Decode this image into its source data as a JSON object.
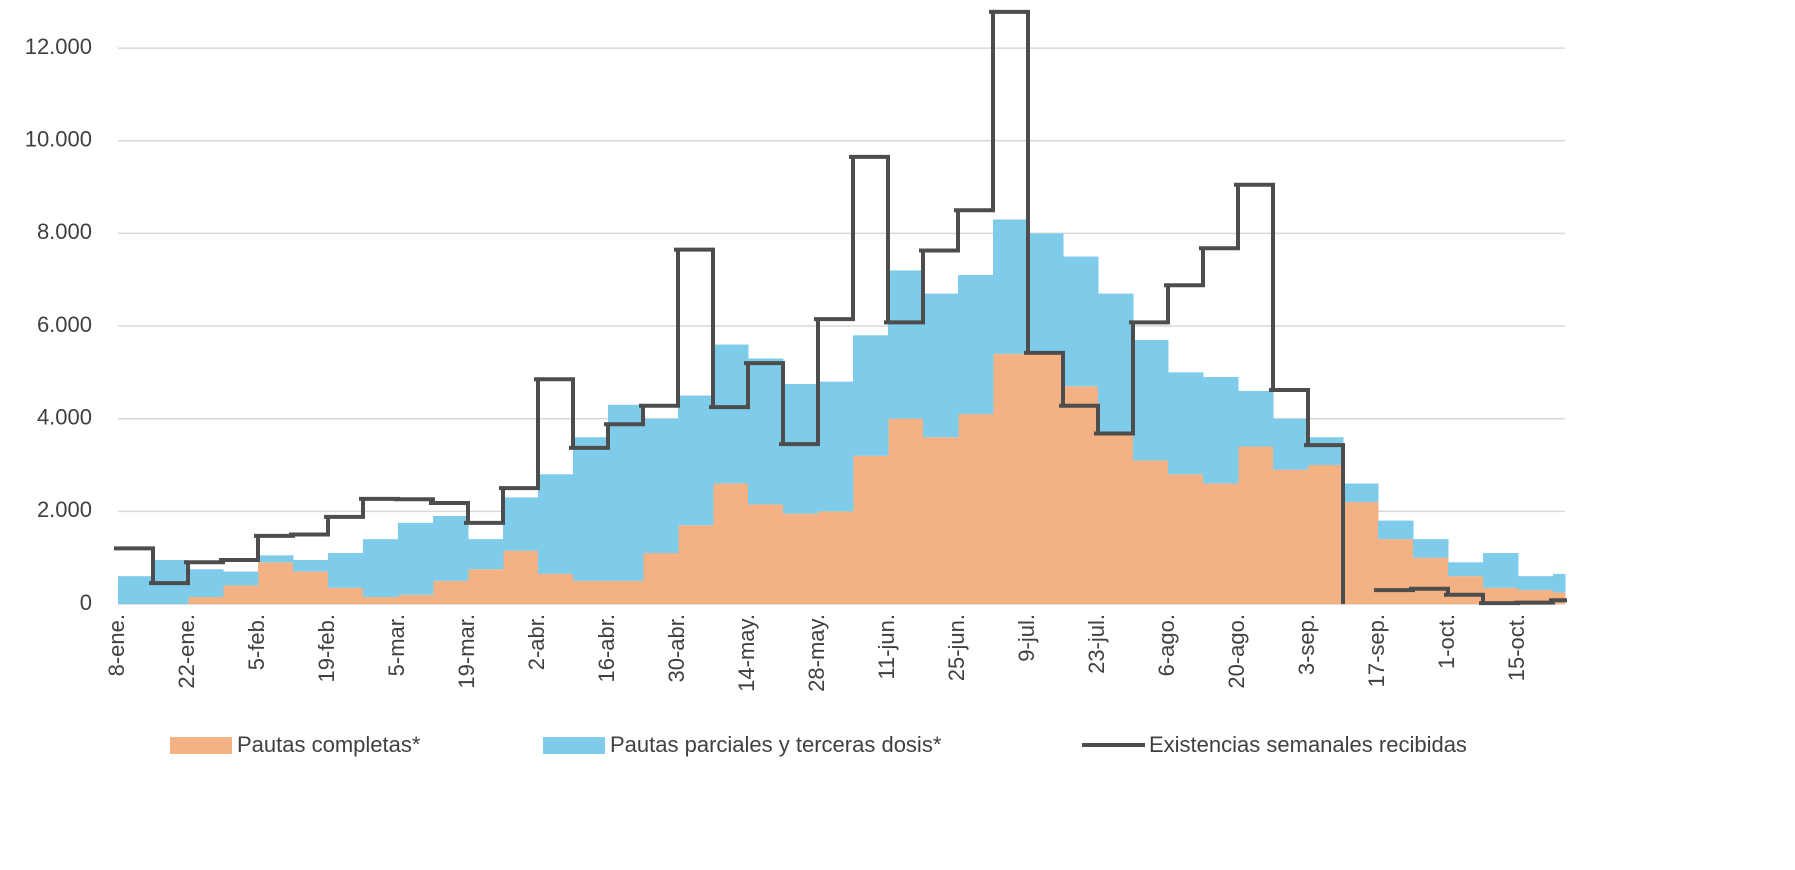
{
  "chart_data": {
    "type": "bar",
    "categories": [
      "8-ene.",
      null,
      "22-ene.",
      null,
      "5-feb.",
      null,
      "19-feb.",
      null,
      "5-mar.",
      null,
      "19-mar.",
      null,
      "2-abr.",
      null,
      "16-abr.",
      null,
      "30-abr.",
      null,
      "14-may.",
      null,
      "28-may.",
      null,
      "11-jun.",
      null,
      "25-jun.",
      null,
      "9-jul.",
      null,
      "23-jul.",
      null,
      "6-ago.",
      null,
      "20-ago.",
      null,
      "3-sep.",
      null,
      "17-sep.",
      null,
      "1-oct.",
      null,
      "15-oct.",
      null
    ],
    "series": [
      {
        "name": "Pautas completas*",
        "color": "#f4b183",
        "values": [
          0,
          0,
          150,
          400,
          900,
          700,
          350,
          150,
          200,
          500,
          750,
          1150,
          650,
          500,
          500,
          1100,
          1700,
          2600,
          2150,
          1950,
          2000,
          3200,
          4000,
          3600,
          4100,
          5400,
          5400,
          4700,
          3700,
          3100,
          2800,
          2600,
          3400,
          2900,
          3000,
          2200,
          1400,
          1000,
          600,
          350,
          300,
          250
        ]
      },
      {
        "name": "Pautas parciales y terceras dosis*",
        "color": "#7fcbea",
        "values": [
          600,
          950,
          600,
          300,
          150,
          250,
          750,
          1250,
          1550,
          1400,
          650,
          1150,
          2150,
          3100,
          3800,
          2900,
          2800,
          3000,
          3150,
          2800,
          2800,
          2600,
          3200,
          3100,
          3000,
          2900,
          2600,
          2800,
          3000,
          2600,
          2200,
          2300,
          1200,
          1100,
          600,
          400,
          400,
          400,
          300,
          750,
          300,
          400
        ]
      },
      {
        "name": "Existencias semanales recibidas",
        "color": "#4d4d4d",
        "type": "line",
        "values": [
          1200,
          450,
          900,
          950,
          1470,
          1500,
          1880,
          2270,
          2260,
          2180,
          1750,
          2500,
          4850,
          3370,
          3880,
          4280,
          7650,
          4250,
          5200,
          3450,
          6150,
          9650,
          6080,
          7630,
          8500,
          12780,
          5420,
          4280,
          3680,
          6080,
          6880,
          7680,
          9050,
          4620,
          3430,
          null,
          300,
          330,
          200,
          20,
          30,
          80
        ]
      }
    ],
    "stacked": true,
    "ylim": [
      0,
      12800
    ],
    "yticks": [
      0,
      {
        "value": 2000,
        "label": "2.000"
      },
      {
        "value": 4000,
        "label": "4.000"
      },
      {
        "value": 6000,
        "label": "6.000"
      },
      {
        "value": 8000,
        "label": "8.000"
      },
      {
        "value": 10000,
        "label": "10.000"
      },
      {
        "value": 12000,
        "label": "12.000"
      }
    ],
    "grid": true,
    "legend": "bottom"
  }
}
